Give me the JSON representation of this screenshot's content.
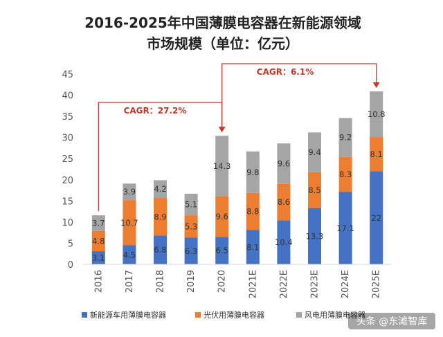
{
  "chart_data": {
    "type": "bar",
    "stacked": true,
    "title_line1": "2016-2025年中国薄膜电容器在新能源领域",
    "title_line2": "市场规模（单位：亿元）",
    "categories": [
      "2016",
      "2017",
      "2018",
      "2019",
      "2020",
      "2021E",
      "2022E",
      "2023E",
      "2024E",
      "2025E"
    ],
    "series": [
      {
        "name": "新能源车用薄膜电容器",
        "color": "#4472c4",
        "values": [
          3.1,
          4.5,
          6.8,
          6.3,
          6.5,
          8.1,
          10.4,
          13.3,
          17.1,
          22
        ]
      },
      {
        "name": "光伏用薄膜电容器",
        "color": "#ed7d31",
        "values": [
          4.8,
          10.7,
          8.9,
          5.3,
          9.6,
          8.8,
          8.6,
          8.5,
          8.3,
          8.1
        ]
      },
      {
        "name": "风电用薄膜电容器",
        "color": "#a5a5a5",
        "values": [
          3.7,
          3.9,
          4.2,
          5.1,
          14.3,
          9.8,
          9.6,
          9.4,
          9.2,
          10.8
        ]
      }
    ],
    "ylim": [
      0,
      45
    ],
    "yticks": [
      0,
      5,
      10,
      15,
      20,
      25,
      30,
      35,
      40,
      45
    ],
    "grid": false,
    "legend_position": "bottom",
    "annotations": [
      {
        "text": "CAGR：27.2%",
        "from": "2016",
        "to": "2020"
      },
      {
        "text": "CAGR：6.1%",
        "from": "2020",
        "to": "2025E"
      }
    ]
  },
  "watermark": {
    "text": "头条 @东滩智库"
  },
  "colors": {
    "annotation": "#c0392b",
    "axis": "#d9d9d9"
  }
}
